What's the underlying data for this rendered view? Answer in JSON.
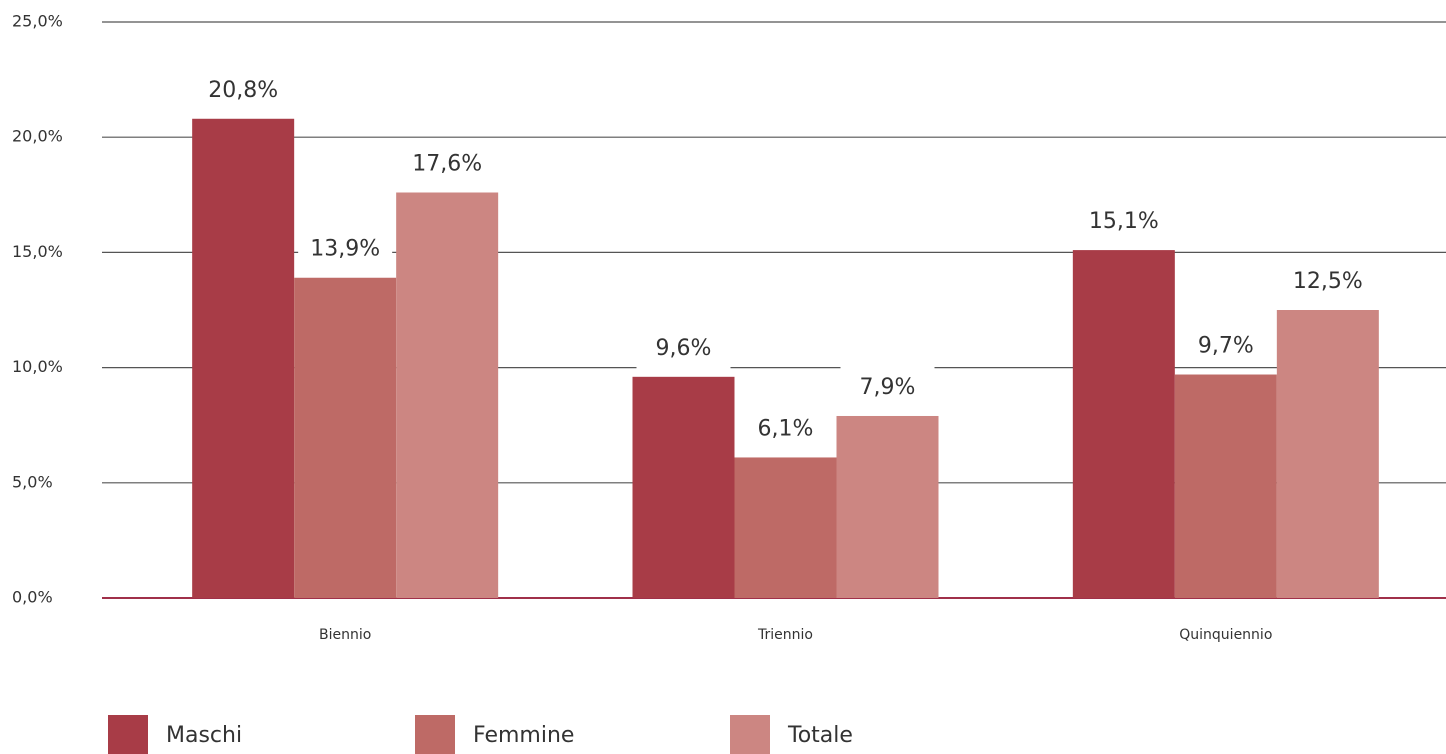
{
  "chart_data": {
    "type": "bar",
    "categories": [
      "Biennio",
      "Triennio",
      "Quinquiennio"
    ],
    "series": [
      {
        "name": "Maschi",
        "color": "#a83c47",
        "values": [
          20.8,
          9.6,
          15.1
        ],
        "value_labels": [
          "20,8%",
          "9,6%",
          "15,1%"
        ]
      },
      {
        "name": "Femmine",
        "color": "#be6a66",
        "values": [
          13.9,
          6.1,
          9.7
        ],
        "value_labels": [
          "13,9%",
          "6,1%",
          "9,7%"
        ]
      },
      {
        "name": "Totale",
        "color": "#cc8682",
        "values": [
          17.6,
          7.9,
          12.5
        ],
        "value_labels": [
          "17,6%",
          "7,9%",
          "12,5%"
        ]
      }
    ],
    "ylim": [
      0,
      25
    ],
    "yticks": [
      {
        "value": 0,
        "label": "0,0%"
      },
      {
        "value": 5,
        "label": "5,0%"
      },
      {
        "value": 10,
        "label": "10,0%"
      },
      {
        "value": 15,
        "label": "15,0%"
      },
      {
        "value": 20,
        "label": "20,0%"
      },
      {
        "value": 25,
        "label": "25,0%"
      }
    ],
    "grid": true,
    "legend": "bottom"
  }
}
